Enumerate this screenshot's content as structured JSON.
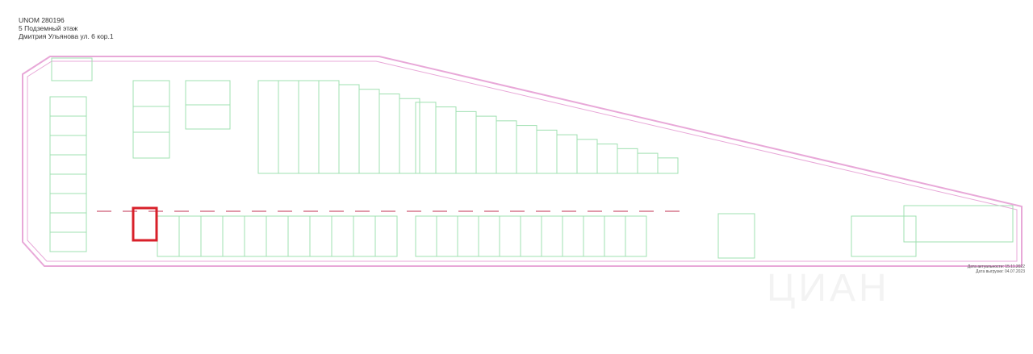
{
  "header": {
    "unom": "UNOM 280196",
    "floor": "5 Подземный этаж",
    "address": "Дмитрия Ульянова ул. 6 кор.1"
  },
  "footer": {
    "actuality_date": "Дата актуальности: 15.11.2022",
    "export_date": "Дата выгрузки: 04.07.2023"
  },
  "watermark": "ЦИАН",
  "colors": {
    "outline": "#e8a8d8",
    "room_wall": "#9fe0b0",
    "highlight": "#d8202a",
    "label": "#c03050",
    "stairs": "#f0d0a0"
  }
}
